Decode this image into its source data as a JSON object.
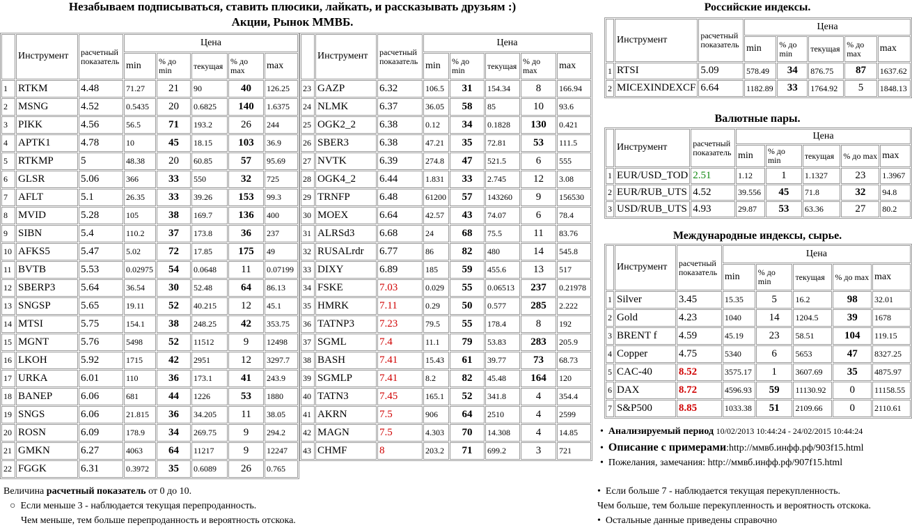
{
  "header": {
    "title": "Незабываем подписываться, ставить плюсики, лайкать, и рассказывать друзьям :)",
    "subtitle": "Акции, Рынок ММВБ."
  },
  "tables": [
    {
      "instrument": "Инструмент",
      "calc": "расчетный показатель",
      "price": "Цена",
      "sub": [
        "min",
        "% до min",
        "текущая",
        "% до max",
        "max"
      ],
      "rows": [
        [
          "1",
          "RTKM",
          "4.48",
          "71.27",
          "21",
          "90",
          "40",
          "126.25"
        ],
        [
          "2",
          "MSNG",
          "4.52",
          "0.5435",
          "20",
          "0.6825",
          "140",
          "1.6375"
        ],
        [
          "3",
          "PIKK",
          "4.56",
          "56.5",
          "71",
          "193.2",
          "26",
          "244"
        ],
        [
          "4",
          "APTK1",
          "4.78",
          "10",
          "45",
          "18.15",
          "103",
          "36.9"
        ],
        [
          "5",
          "RTKMP",
          "5",
          "48.38",
          "20",
          "60.85",
          "57",
          "95.69"
        ],
        [
          "6",
          "GLSR",
          "5.06",
          "366",
          "33",
          "550",
          "32",
          "725"
        ],
        [
          "7",
          "AFLT",
          "5.1",
          "26.35",
          "33",
          "39.26",
          "153",
          "99.3"
        ],
        [
          "8",
          "MVID",
          "5.28",
          "105",
          "38",
          "169.7",
          "136",
          "400"
        ],
        [
          "9",
          "SIBN",
          "5.4",
          "110.2",
          "37",
          "173.8",
          "36",
          "237"
        ],
        [
          "10",
          "AFKS5",
          "5.47",
          "5.02",
          "72",
          "17.85",
          "175",
          "49"
        ],
        [
          "11",
          "BVTB",
          "5.53",
          "0.02975",
          "54",
          "0.0648",
          "11",
          "0.07199"
        ],
        [
          "12",
          "SBERP3",
          "5.64",
          "36.54",
          "30",
          "52.48",
          "64",
          "86.13"
        ],
        [
          "13",
          "SNGSP",
          "5.65",
          "19.11",
          "52",
          "40.215",
          "12",
          "45.1"
        ],
        [
          "14",
          "MTSI",
          "5.75",
          "154.1",
          "38",
          "248.25",
          "42",
          "353.75"
        ],
        [
          "15",
          "MGNT",
          "5.76",
          "5498",
          "52",
          "11512",
          "9",
          "12498"
        ],
        [
          "16",
          "LKOH",
          "5.92",
          "1715",
          "42",
          "2951",
          "12",
          "3297.7"
        ],
        [
          "17",
          "URKA",
          "6.01",
          "110",
          "36",
          "173.1",
          "41",
          "243.9"
        ],
        [
          "18",
          "BANEP",
          "6.06",
          "681",
          "44",
          "1226",
          "53",
          "1880"
        ],
        [
          "19",
          "SNGS",
          "6.06",
          "21.815",
          "36",
          "34.205",
          "11",
          "38.05"
        ],
        [
          "20",
          "ROSN",
          "6.09",
          "178.9",
          "34",
          "269.75",
          "9",
          "294.2"
        ],
        [
          "21",
          "GMKN",
          "6.27",
          "4063",
          "64",
          "11217",
          "9",
          "12247"
        ],
        [
          "22",
          "FGGK",
          "6.31",
          "0.3972",
          "35",
          "0.6089",
          "26",
          "0.765"
        ]
      ]
    },
    {
      "instrument": "Инструмент",
      "calc": "расчетный показатель",
      "price": "Цена",
      "sub": [
        "min",
        "% до min",
        "текущая",
        "% до max",
        "max"
      ],
      "rows": [
        [
          "23",
          "GAZP",
          "6.32",
          "106.5",
          "31",
          "154.34",
          "8",
          "166.94"
        ],
        [
          "24",
          "NLMK",
          "6.37",
          "36.05",
          "58",
          "85",
          "10",
          "93.6"
        ],
        [
          "25",
          "OGK2_2",
          "6.38",
          "0.12",
          "34",
          "0.1828",
          "130",
          "0.421"
        ],
        [
          "26",
          "SBER3",
          "6.38",
          "47.21",
          "35",
          "72.81",
          "53",
          "111.5"
        ],
        [
          "27",
          "NVTK",
          "6.39",
          "274.8",
          "47",
          "521.5",
          "6",
          "555"
        ],
        [
          "28",
          "OGK4_2",
          "6.44",
          "1.831",
          "33",
          "2.745",
          "12",
          "3.08"
        ],
        [
          "29",
          "TRNFP",
          "6.48",
          "61200",
          "57",
          "143260",
          "9",
          "156530"
        ],
        [
          "30",
          "MOEX",
          "6.64",
          "42.57",
          "43",
          "74.07",
          "6",
          "78.4"
        ],
        [
          "31",
          "ALRSd3",
          "6.68",
          "24",
          "68",
          "75.5",
          "11",
          "83.76"
        ],
        [
          "32",
          "RUSALrdr",
          "6.77",
          "86",
          "82",
          "480",
          "14",
          "545.8"
        ],
        [
          "33",
          "DIXY",
          "6.89",
          "185",
          "59",
          "455.6",
          "13",
          "517"
        ],
        [
          "34",
          "FSKE",
          "7.03",
          "0.029",
          "55",
          "0.06513",
          "237",
          "0.21978"
        ],
        [
          "35",
          "HMRK",
          "7.11",
          "0.29",
          "50",
          "0.577",
          "285",
          "2.222"
        ],
        [
          "36",
          "TATNP3",
          "7.23",
          "79.5",
          "55",
          "178.4",
          "8",
          "192"
        ],
        [
          "37",
          "SGML",
          "7.4",
          "11.1",
          "79",
          "53.83",
          "283",
          "205.9"
        ],
        [
          "38",
          "BASH",
          "7.41",
          "15.43",
          "61",
          "39.77",
          "73",
          "68.73"
        ],
        [
          "39",
          "SGMLP",
          "7.41",
          "8.2",
          "82",
          "45.48",
          "164",
          "120"
        ],
        [
          "40",
          "TATN3",
          "7.45",
          "165.1",
          "52",
          "341.8",
          "4",
          "354.4"
        ],
        [
          "41",
          "AKRN",
          "7.5",
          "906",
          "64",
          "2510",
          "4",
          "2599"
        ],
        [
          "42",
          "MAGN",
          "7.5",
          "4.303",
          "70",
          "14.308",
          "4",
          "14.85"
        ],
        [
          "43",
          "CHMF",
          "8",
          "203.2",
          "71",
          "699.2",
          "3",
          "721"
        ]
      ]
    },
    {
      "title": "Российские индексы.",
      "instrument": "Инструмент",
      "calc": "расчетный показатель",
      "price": "Цена",
      "sub": [
        "min",
        "% до min",
        "текущая",
        "% до max",
        "max"
      ],
      "rows": [
        [
          "1",
          "RTSI",
          "5.09",
          "578.49",
          "34",
          "876.75",
          "87",
          "1637.62"
        ],
        [
          "2",
          "MICEXINDEXCF",
          "6.64",
          "1182.89",
          "33",
          "1764.92",
          "5",
          "1848.13"
        ]
      ]
    },
    {
      "title": "Валютные пары.",
      "instrument": "Инструмент",
      "calc": "расчетный показатель",
      "price": "Цена",
      "sub": [
        "min",
        "% до min",
        "текущая",
        "% до max",
        "max"
      ],
      "rows": [
        [
          "1",
          "EUR/USD_TOD",
          "2.51",
          "1.12",
          "1",
          "1.1327",
          "23",
          "1.3967"
        ],
        [
          "2",
          "EUR/RUB_UTS",
          "4.52",
          "39.556",
          "45",
          "71.8",
          "32",
          "94.8"
        ],
        [
          "3",
          "USD/RUB_UTS",
          "4.93",
          "29.87",
          "53",
          "63.36",
          "27",
          "80.2"
        ]
      ]
    },
    {
      "title": "Международные индексы, сырье.",
      "instrument": "Инструмент",
      "calc": "расчетный показатель",
      "price": "Цена",
      "sub": [
        "min",
        "% до min",
        "текущая",
        "% до max",
        "max"
      ],
      "rows": [
        [
          "1",
          "Silver",
          "3.45",
          "15.35",
          "5",
          "16.2",
          "98",
          "32.01"
        ],
        [
          "2",
          "Gold",
          "4.23",
          "1040",
          "14",
          "1204.5",
          "39",
          "1678"
        ],
        [
          "3",
          "BRENT f",
          "4.59",
          "45.19",
          "23",
          "58.51",
          "104",
          "119.15"
        ],
        [
          "4",
          "Copper",
          "4.75",
          "5340",
          "6",
          "5653",
          "47",
          "8327.25"
        ],
        [
          "5",
          "CAC-40",
          "8.52",
          "3575.17",
          "1",
          "3607.69",
          "35",
          "4875.97"
        ],
        [
          "6",
          "DAX",
          "8.72",
          "4596.93",
          "59",
          "11130.92",
          "0",
          "11158.55"
        ],
        [
          "7",
          "S&P500",
          "8.85",
          "1033.38",
          "51",
          "2109.66",
          "0",
          "2110.61"
        ]
      ]
    }
  ],
  "notes": [
    {
      "label": "Анализируемый период",
      "text": "10/02/2013 10:44:24 - 24/02/2015 10:44:24"
    },
    {
      "label": "Описание с примерами",
      "text": ":http://ммвб.инфф.рф/903f15.html"
    },
    {
      "text": "Пожелания, замечания: http://ммвб.инфф.рф/907f15.html"
    }
  ],
  "legend_left": {
    "prefix": "Величина",
    "bold": "расчетный показатель",
    "suffix": "от 0 до 10.",
    "items": [
      "Если меньше 3 - наблюдается текущая перепроданность.",
      "Чем меньше, тем больше перепроданность и вероятность отскока."
    ]
  },
  "legend_right": [
    "Если больше 7 - наблюдается текущая перекупленность.",
    "Чем больше, тем больше перекупленность и вероятность отскока.",
    "Остальные данные приведены справочно"
  ]
}
